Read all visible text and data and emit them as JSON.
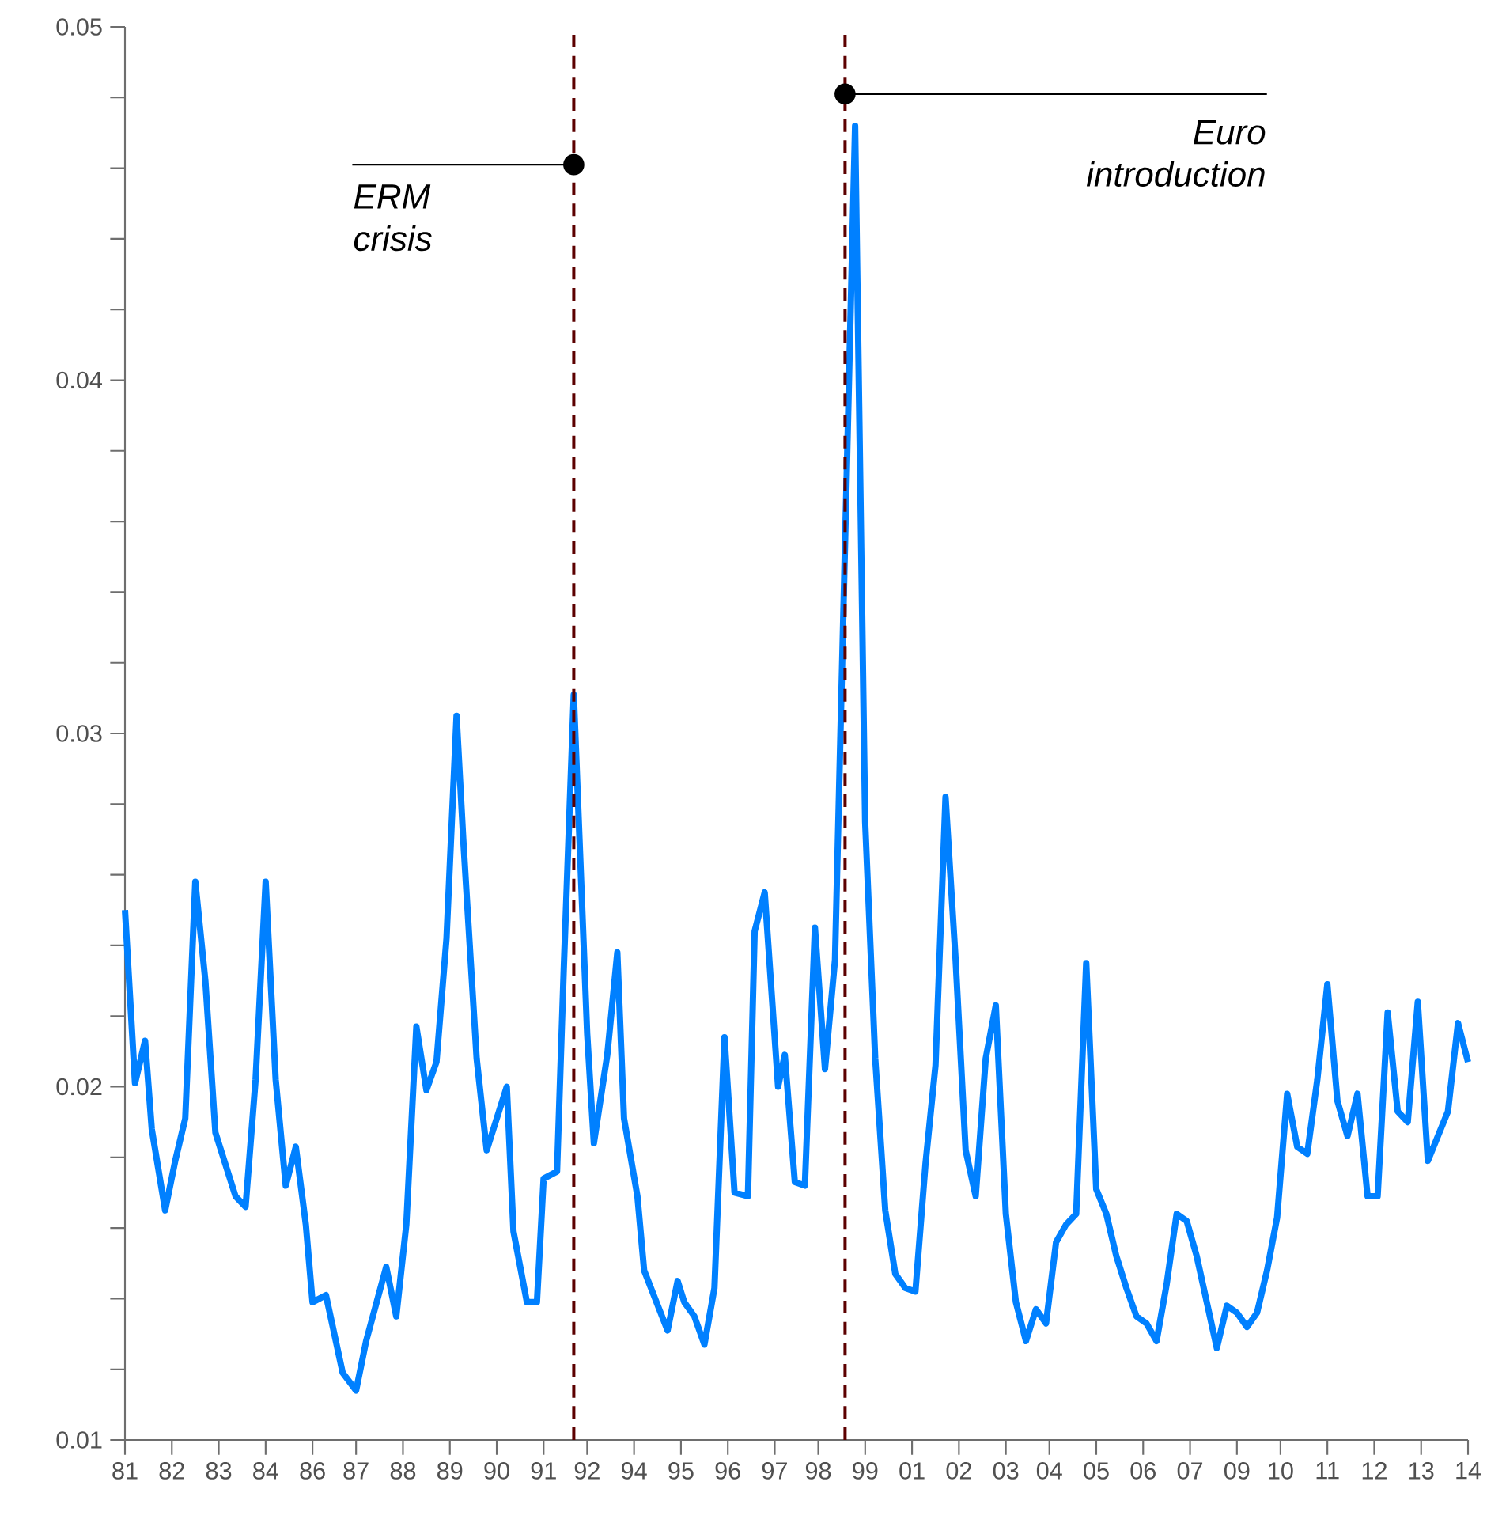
{
  "chart_data": {
    "type": "line",
    "x": [
      "1981-06",
      "1981-09",
      "1981-12",
      "1982-02",
      "1982-06",
      "1982-09",
      "1982-12",
      "1983-03",
      "1983-06",
      "1983-09",
      "1984-03",
      "1984-06",
      "1984-09",
      "1984-12",
      "1985-03",
      "1985-06",
      "1985-09",
      "1985-12",
      "1986-02",
      "1986-06",
      "1986-11",
      "1987-03",
      "1987-06",
      "1987-12",
      "1988-03",
      "1988-06",
      "1988-09",
      "1988-12",
      "1989-03",
      "1989-06",
      "1989-09",
      "1989-11",
      "1990-03",
      "1990-06",
      "1990-12",
      "1991-02",
      "1991-06",
      "1991-09",
      "1991-11",
      "1992-03",
      "1992-05",
      "1992-08",
      "1992-12",
      "1993-02",
      "1993-06",
      "1993-09",
      "1993-11",
      "1994-03",
      "1994-05",
      "1994-12",
      "1995-03",
      "1995-05",
      "1995-08",
      "1995-11",
      "1996-02",
      "1996-05",
      "1996-08",
      "1996-12",
      "1997-02",
      "1997-05",
      "1997-09",
      "1997-11",
      "1998-02",
      "1998-05",
      "1998-08",
      "1998-11",
      "1999-02",
      "1999-08",
      "1999-11",
      "2000-02",
      "2000-05",
      "2000-08",
      "2000-11",
      "2001-02",
      "2001-05",
      "2001-08",
      "2001-11",
      "2002-02",
      "2002-05",
      "2002-08",
      "2002-11",
      "2003-02",
      "2003-05",
      "2003-08",
      "2003-11",
      "2004-02",
      "2004-05",
      "2004-08",
      "2004-11",
      "2005-02",
      "2005-05",
      "2005-08",
      "2005-11",
      "2006-02",
      "2006-05",
      "2006-08",
      "2006-11",
      "2007-02",
      "2007-05",
      "2007-08",
      "2007-11",
      "2008-02",
      "2008-05",
      "2008-08",
      "2008-11",
      "2009-02",
      "2009-05",
      "2009-08",
      "2009-11",
      "2010-02",
      "2010-05",
      "2010-08",
      "2010-11",
      "2011-02",
      "2011-05",
      "2011-08",
      "2011-11",
      "2012-02",
      "2012-05",
      "2012-08",
      "2012-11",
      "2013-02",
      "2013-05",
      "2013-08",
      "2013-11",
      "2014-05",
      "2014-08",
      "2014-11"
    ],
    "series": [
      {
        "color": "#0080ff",
        "values": [
          0.025,
          0.0201,
          0.0213,
          0.0188,
          0.0165,
          0.0179,
          0.0191,
          0.0258,
          0.023,
          0.0187,
          0.0169,
          0.0166,
          0.0202,
          0.0258,
          0.0202,
          0.0172,
          0.0183,
          0.0161,
          0.0139,
          0.0141,
          0.0119,
          0.0114,
          0.0128,
          0.0149,
          0.0135,
          0.0161,
          0.0217,
          0.0199,
          0.0207,
          0.0242,
          0.0305,
          0.027,
          0.0208,
          0.0182,
          0.02,
          0.0159,
          0.0139,
          0.0139,
          0.0174,
          0.0176,
          0.0233,
          0.0311,
          0.0215,
          0.0184,
          0.0209,
          0.0238,
          0.0191,
          0.0169,
          0.0148,
          0.0131,
          0.0145,
          0.0139,
          0.0135,
          0.0127,
          0.0143,
          0.0214,
          0.017,
          0.0169,
          0.0244,
          0.0255,
          0.02,
          0.0209,
          0.0173,
          0.0172,
          0.0245,
          0.0205,
          0.0236,
          0.0472,
          0.0275,
          0.0208,
          0.0165,
          0.0147,
          0.0143,
          0.0142,
          0.0178,
          0.0206,
          0.0282,
          0.0236,
          0.0182,
          0.0169,
          0.0208,
          0.0223,
          0.0164,
          0.0139,
          0.0128,
          0.0137,
          0.0133,
          0.0156,
          0.0161,
          0.0164,
          0.0235,
          0.0171,
          0.0164,
          0.0152,
          0.0143,
          0.0135,
          0.0133,
          0.0128,
          0.0144,
          0.0164,
          0.0162,
          0.0152,
          0.0139,
          0.0126,
          0.0138,
          0.0136,
          0.0132,
          0.0136,
          0.0148,
          0.0163,
          0.0198,
          0.0183,
          0.0181,
          0.0202,
          0.0229,
          0.0196,
          0.0186,
          0.0198,
          0.0169,
          0.0169,
          0.0221,
          0.0193,
          0.019,
          0.0224,
          0.0179,
          0.0193,
          0.0218,
          0.0207
        ]
      }
    ],
    "xlim": [
      "1981-06",
      "2014-11"
    ],
    "ylim": [
      0.01,
      0.05
    ],
    "xticks": [
      {
        "value": "1981-06",
        "label": "81"
      },
      {
        "value": "1982-08",
        "label": "82"
      },
      {
        "value": "1983-10",
        "label": "83"
      },
      {
        "value": "1984-12",
        "label": "84"
      },
      {
        "value": "1986-02",
        "label": "86"
      },
      {
        "value": "1987-03",
        "label": "87"
      },
      {
        "value": "1988-05",
        "label": "88"
      },
      {
        "value": "1989-07",
        "label": "89"
      },
      {
        "value": "1990-09",
        "label": "90"
      },
      {
        "value": "1991-11",
        "label": "91"
      },
      {
        "value": "1992-12",
        "label": "92"
      },
      {
        "value": "1994-02",
        "label": "94"
      },
      {
        "value": "1995-04",
        "label": "95"
      },
      {
        "value": "1996-06",
        "label": "96"
      },
      {
        "value": "1997-08",
        "label": "97"
      },
      {
        "value": "1998-09",
        "label": "98"
      },
      {
        "value": "1999-11",
        "label": "99"
      },
      {
        "value": "2001-01",
        "label": "01"
      },
      {
        "value": "2002-03",
        "label": "02"
      },
      {
        "value": "2003-05",
        "label": "03"
      },
      {
        "value": "2004-06",
        "label": "04"
      },
      {
        "value": "2005-08",
        "label": "05"
      },
      {
        "value": "2006-10",
        "label": "06"
      },
      {
        "value": "2007-12",
        "label": "07"
      },
      {
        "value": "2009-02",
        "label": "09"
      },
      {
        "value": "2010-03",
        "label": "10"
      },
      {
        "value": "2011-05",
        "label": "11"
      },
      {
        "value": "2012-07",
        "label": "12"
      },
      {
        "value": "2013-09",
        "label": "13"
      },
      {
        "value": "2014-11",
        "label": "14"
      }
    ],
    "yticks": [
      0.01,
      {
        "value": 0.012,
        "label": null
      },
      {
        "value": 0.014,
        "label": null
      },
      {
        "value": 0.016,
        "label": null
      },
      {
        "value": 0.018,
        "label": null
      },
      0.02,
      {
        "value": 0.022,
        "label": null
      },
      {
        "value": 0.024,
        "label": null
      },
      {
        "value": 0.026,
        "label": null
      },
      {
        "value": 0.028,
        "label": null
      },
      0.03,
      {
        "value": 0.032,
        "label": null
      },
      {
        "value": 0.034,
        "label": null
      },
      {
        "value": 0.036,
        "label": null
      },
      {
        "value": 0.038,
        "label": null
      },
      0.04,
      {
        "value": 0.042,
        "label": null
      },
      {
        "value": 0.044,
        "label": null
      },
      {
        "value": 0.046,
        "label": null
      },
      {
        "value": 0.048,
        "label": null
      },
      0.05
    ],
    "ref_lines": [
      {
        "axis": "x",
        "value": "1992-08",
        "color": "#5c0000",
        "line_style": "dashed"
      },
      {
        "axis": "x",
        "value": "1999-05",
        "color": "#5c0000",
        "line_style": "dashed"
      }
    ],
    "annotations": [
      {
        "text": "ERM crisis",
        "x": "1992-08",
        "y": 0.0461
      },
      {
        "text": "Euro introduction",
        "x": "1999-05",
        "y": 0.0481
      }
    ]
  }
}
